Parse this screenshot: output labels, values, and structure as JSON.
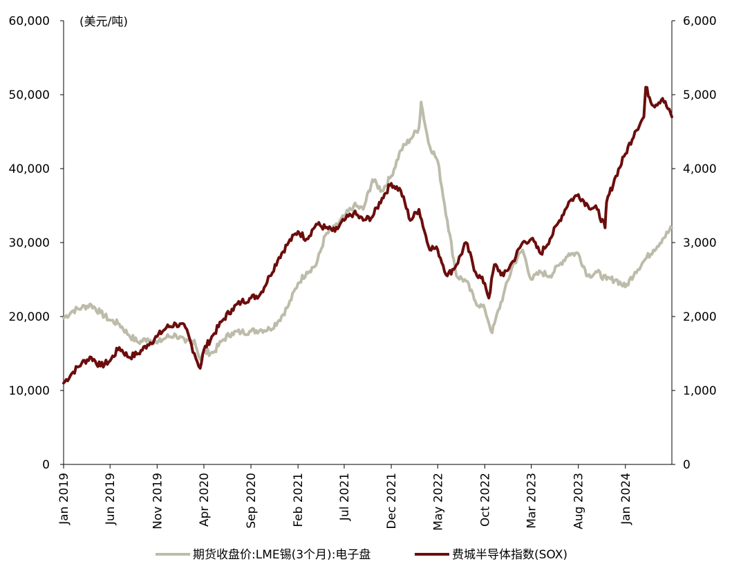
{
  "chart_data": {
    "type": "line",
    "title": "",
    "unit_label": "(美元/吨)",
    "ylabel": "",
    "y2label": "",
    "xlabel": "",
    "ylim": [
      0,
      60000
    ],
    "y2lim": [
      0,
      6000
    ],
    "yticks": [
      "0",
      "10,000",
      "20,000",
      "30,000",
      "40,000",
      "50,000",
      "60,000"
    ],
    "y2ticks": [
      "0",
      "1,000",
      "2,000",
      "3,000",
      "4,000",
      "5,000",
      "6,000"
    ],
    "xlim": [
      "2019-01-01",
      "2024-05-31"
    ],
    "xticks": [
      "Jan 2019",
      "Jun 2019",
      "Nov 2019",
      "Apr 2020",
      "Sep 2020",
      "Feb 2021",
      "Jul 2021",
      "Dec 2021",
      "May 2022",
      "Oct 2022",
      "Mar 2023",
      "Aug 2023",
      "Jan 2024"
    ],
    "legend_position": "bottom",
    "grid": false,
    "series": [
      {
        "name": "期货收盘价:LME锡(3个月):电子盘",
        "axis": "left",
        "color": "#bdbcaa",
        "x": [
          "2019-01-01",
          "2019-02-01",
          "2019-03-01",
          "2019-04-01",
          "2019-05-01",
          "2019-06-01",
          "2019-07-01",
          "2019-08-01",
          "2019-09-01",
          "2019-10-01",
          "2019-11-01",
          "2019-12-01",
          "2020-01-01",
          "2020-02-01",
          "2020-03-01",
          "2020-03-20",
          "2020-04-01",
          "2020-05-01",
          "2020-06-01",
          "2020-07-01",
          "2020-08-01",
          "2020-09-01",
          "2020-10-01",
          "2020-11-01",
          "2020-12-01",
          "2021-01-01",
          "2021-02-01",
          "2021-03-01",
          "2021-04-01",
          "2021-05-01",
          "2021-06-01",
          "2021-07-01",
          "2021-08-01",
          "2021-09-01",
          "2021-10-01",
          "2021-11-01",
          "2021-12-01",
          "2022-01-01",
          "2022-02-01",
          "2022-03-01",
          "2022-03-08",
          "2022-04-01",
          "2022-05-01",
          "2022-06-01",
          "2022-07-01",
          "2022-08-01",
          "2022-09-01",
          "2022-10-01",
          "2022-10-25",
          "2022-11-01",
          "2022-12-01",
          "2023-01-01",
          "2023-02-01",
          "2023-03-01",
          "2023-04-01",
          "2023-05-01",
          "2023-06-01",
          "2023-07-01",
          "2023-08-01",
          "2023-09-01",
          "2023-10-01",
          "2023-11-01",
          "2023-12-01",
          "2024-01-01",
          "2024-02-01",
          "2024-03-01",
          "2024-04-01",
          "2024-05-01",
          "2024-05-31"
        ],
        "values": [
          19800,
          20800,
          21200,
          21600,
          20500,
          19500,
          19000,
          17500,
          16500,
          17000,
          16400,
          17200,
          17500,
          16500,
          16800,
          14200,
          15200,
          15100,
          16800,
          17800,
          17900,
          18000,
          18200,
          18300,
          19500,
          21500,
          24500,
          26000,
          27000,
          31000,
          32000,
          33500,
          35000,
          34500,
          38500,
          37000,
          39000,
          42500,
          44000,
          45500,
          49000,
          43500,
          41000,
          33000,
          25500,
          24800,
          22000,
          21000,
          17800,
          19000,
          23000,
          27000,
          29000,
          25000,
          26000,
          25500,
          27000,
          28500,
          28500,
          25500,
          26000,
          25000,
          25000,
          24000,
          26000,
          27500,
          29000,
          30500,
          32000
        ]
      },
      {
        "name": "费城半导体指数(SOX)",
        "axis": "right",
        "color": "#6b0d0d",
        "x": [
          "2019-01-01",
          "2019-02-01",
          "2019-03-01",
          "2019-04-01",
          "2019-05-01",
          "2019-06-01",
          "2019-07-01",
          "2019-08-01",
          "2019-09-01",
          "2019-10-01",
          "2019-11-01",
          "2019-12-01",
          "2020-01-01",
          "2020-02-01",
          "2020-03-01",
          "2020-03-20",
          "2020-04-01",
          "2020-05-01",
          "2020-06-01",
          "2020-07-01",
          "2020-08-01",
          "2020-09-01",
          "2020-10-01",
          "2020-11-01",
          "2020-12-01",
          "2021-01-01",
          "2021-02-01",
          "2021-03-01",
          "2021-04-01",
          "2021-05-01",
          "2021-06-01",
          "2021-07-01",
          "2021-08-01",
          "2021-09-01",
          "2021-10-01",
          "2021-11-01",
          "2021-12-01",
          "2022-01-01",
          "2022-02-01",
          "2022-03-01",
          "2022-04-01",
          "2022-05-01",
          "2022-06-01",
          "2022-07-01",
          "2022-08-01",
          "2022-09-01",
          "2022-10-01",
          "2022-10-14",
          "2022-11-01",
          "2022-12-01",
          "2023-01-01",
          "2023-02-01",
          "2023-03-01",
          "2023-04-01",
          "2023-05-01",
          "2023-06-01",
          "2023-07-01",
          "2023-08-01",
          "2023-09-01",
          "2023-10-01",
          "2023-10-27",
          "2023-11-01",
          "2023-12-01",
          "2024-01-01",
          "2024-02-01",
          "2024-03-01",
          "2024-03-07",
          "2024-04-01",
          "2024-05-01",
          "2024-05-31"
        ],
        "values": [
          1100,
          1250,
          1370,
          1450,
          1330,
          1400,
          1580,
          1450,
          1500,
          1620,
          1730,
          1850,
          1900,
          1850,
          1500,
          1300,
          1550,
          1750,
          1950,
          2100,
          2200,
          2250,
          2300,
          2550,
          2800,
          3000,
          3150,
          3050,
          3250,
          3200,
          3150,
          3300,
          3400,
          3300,
          3350,
          3600,
          3800,
          3700,
          3300,
          3450,
          2950,
          2900,
          2550,
          2700,
          3000,
          2600,
          2450,
          2250,
          2700,
          2550,
          2750,
          3000,
          3050,
          2850,
          3050,
          3300,
          3550,
          3650,
          3500,
          3450,
          3200,
          3550,
          3900,
          4200,
          4500,
          4700,
          5100,
          4850,
          4950,
          4700
        ]
      }
    ]
  }
}
